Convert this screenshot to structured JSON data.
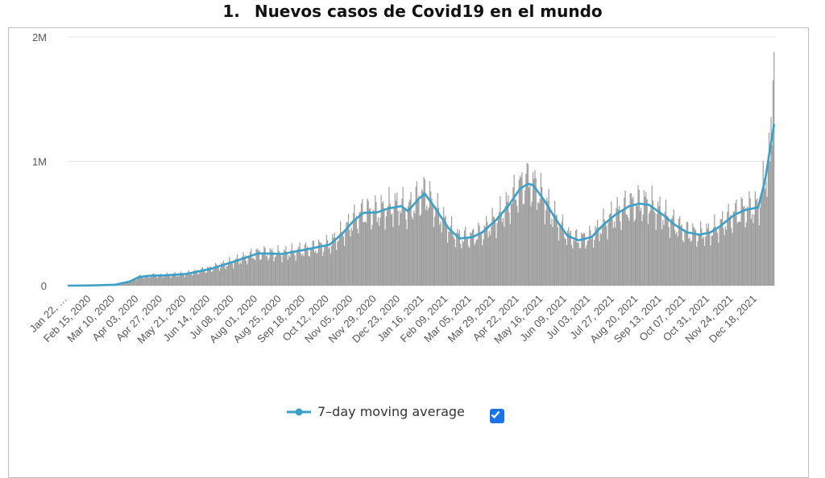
{
  "title": {
    "number": "1.",
    "text": "Nuevos casos de Covid19 en el mundo"
  },
  "colors": {
    "bars": "#9e9e9e",
    "line": "#3aa0c8",
    "checkbox": "#1a73e8",
    "grid": "#e6e6e6"
  },
  "chart_data": {
    "type": "bar",
    "overlay": "line",
    "ylim": [
      0,
      2000000
    ],
    "y_ticks": [
      {
        "value": 0,
        "label": "0"
      },
      {
        "value": 1000000,
        "label": "1M"
      },
      {
        "value": 2000000,
        "label": "2M"
      }
    ],
    "x_tick_labels": [
      "Jan 22, …",
      "Feb 15, 2020",
      "Mar 10, 2020",
      "Apr 03, 2020",
      "Apr 27, 2020",
      "May 21, 2020",
      "Jun 14, 2020",
      "Jul 08, 2020",
      "Aug 01, 2020",
      "Aug 25, 2020",
      "Sep 18, 2020",
      "Oct 12, 2020",
      "Nov 05, 2020",
      "Nov 29, 2020",
      "Dec 23, 2020",
      "Jan 16, 2021",
      "Feb 09, 2021",
      "Mar 05, 2021",
      "Mar 29, 2021",
      "Apr 22, 2021",
      "May 16, 2021",
      "Jun 09, 2021",
      "Jul 03, 2021",
      "Jul 27, 2021",
      "Aug 20, 2021",
      "Sep 13, 2021",
      "Oct 07, 2021",
      "Oct 31, 2021",
      "Nov 24, 2021",
      "Dec 18, 2021"
    ],
    "x_start": "2020-01-22",
    "x_end": "2022-01-04",
    "series": [
      {
        "name": "7-day moving average",
        "type": "line",
        "points": [
          [
            "2020-01-22",
            0
          ],
          [
            "2020-02-15",
            2000
          ],
          [
            "2020-03-10",
            8000
          ],
          [
            "2020-03-25",
            35000
          ],
          [
            "2020-04-03",
            70000
          ],
          [
            "2020-04-15",
            80000
          ],
          [
            "2020-04-27",
            82000
          ],
          [
            "2020-05-21",
            95000
          ],
          [
            "2020-06-14",
            135000
          ],
          [
            "2020-07-08",
            195000
          ],
          [
            "2020-07-25",
            240000
          ],
          [
            "2020-08-01",
            260000
          ],
          [
            "2020-08-25",
            255000
          ],
          [
            "2020-09-18",
            290000
          ],
          [
            "2020-10-12",
            330000
          ],
          [
            "2020-10-25",
            420000
          ],
          [
            "2020-11-05",
            520000
          ],
          [
            "2020-11-15",
            585000
          ],
          [
            "2020-11-29",
            590000
          ],
          [
            "2020-12-10",
            620000
          ],
          [
            "2020-12-23",
            640000
          ],
          [
            "2020-12-30",
            600000
          ],
          [
            "2021-01-10",
            700000
          ],
          [
            "2021-01-16",
            740000
          ],
          [
            "2021-01-25",
            640000
          ],
          [
            "2021-02-09",
            460000
          ],
          [
            "2021-02-20",
            380000
          ],
          [
            "2021-03-05",
            390000
          ],
          [
            "2021-03-15",
            430000
          ],
          [
            "2021-03-29",
            530000
          ],
          [
            "2021-04-10",
            640000
          ],
          [
            "2021-04-22",
            780000
          ],
          [
            "2021-04-30",
            820000
          ],
          [
            "2021-05-05",
            810000
          ],
          [
            "2021-05-16",
            690000
          ],
          [
            "2021-05-30",
            510000
          ],
          [
            "2021-06-09",
            400000
          ],
          [
            "2021-06-20",
            365000
          ],
          [
            "2021-07-03",
            390000
          ],
          [
            "2021-07-15",
            490000
          ],
          [
            "2021-07-27",
            570000
          ],
          [
            "2021-08-10",
            640000
          ],
          [
            "2021-08-20",
            660000
          ],
          [
            "2021-08-30",
            650000
          ],
          [
            "2021-09-13",
            570000
          ],
          [
            "2021-09-25",
            490000
          ],
          [
            "2021-10-07",
            430000
          ],
          [
            "2021-10-20",
            410000
          ],
          [
            "2021-10-31",
            430000
          ],
          [
            "2021-11-10",
            480000
          ],
          [
            "2021-11-24",
            570000
          ],
          [
            "2021-12-05",
            610000
          ],
          [
            "2021-12-18",
            630000
          ],
          [
            "2021-12-25",
            850000
          ],
          [
            "2021-12-30",
            1100000
          ],
          [
            "2022-01-03",
            1300000
          ]
        ]
      },
      {
        "name": "",
        "type": "bar",
        "spikes": [
          [
            "2021-12-30",
            1000000
          ],
          [
            "2022-01-02",
            1650000
          ],
          [
            "2022-01-03",
            1880000
          ],
          [
            "2021-01-08",
            840000
          ],
          [
            "2021-04-28",
            900000
          ]
        ]
      }
    ],
    "grid": true
  },
  "legend": {
    "label": "7–day moving average",
    "checked": true
  }
}
